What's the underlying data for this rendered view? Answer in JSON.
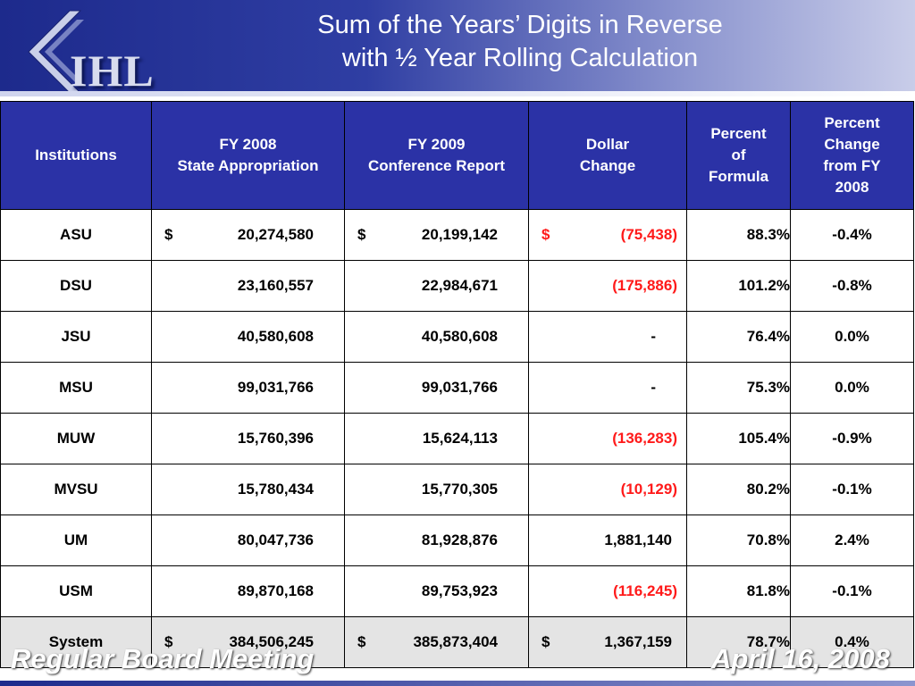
{
  "header": {
    "logo_text": "IHL",
    "title_line1": "Sum of the Years’ Digits in Reverse",
    "title_line2": "with ½ Year Rolling Calculation"
  },
  "table": {
    "headers": {
      "institutions": "Institutions",
      "fy2008_line1": "FY 2008",
      "fy2008_line2": "State Appropriation",
      "fy2009_line1": "FY 2009",
      "fy2009_line2": "Conference Report",
      "dollar_line1": "Dollar",
      "dollar_line2": "Change",
      "pct_formula_line1": "Percent",
      "pct_formula_line2": "of",
      "pct_formula_line3": "Formula",
      "pct_change_line1": "Percent",
      "pct_change_line2": "Change",
      "pct_change_line3": "from FY",
      "pct_change_line4": "2008"
    },
    "rows": [
      {
        "inst": "ASU",
        "fy08_cur": "$",
        "fy08": "20,274,580",
        "fy09_cur": "$",
        "fy09": "20,199,142",
        "chg_cur": "$",
        "chg": "(75,438)",
        "pct": "88.3%",
        "pchg": "-0.4%"
      },
      {
        "inst": "DSU",
        "fy08_cur": "",
        "fy08": "23,160,557",
        "fy09_cur": "",
        "fy09": "22,984,671",
        "chg_cur": "",
        "chg": "(175,886)",
        "pct": "101.2%",
        "pchg": "-0.8%"
      },
      {
        "inst": "JSU",
        "fy08_cur": "",
        "fy08": "40,580,608",
        "fy09_cur": "",
        "fy09": "40,580,608",
        "chg_cur": "",
        "chg": "-",
        "pct": "76.4%",
        "pchg": "0.0%"
      },
      {
        "inst": "MSU",
        "fy08_cur": "",
        "fy08": "99,031,766",
        "fy09_cur": "",
        "fy09": "99,031,766",
        "chg_cur": "",
        "chg": "-",
        "pct": "75.3%",
        "pchg": "0.0%"
      },
      {
        "inst": "MUW",
        "fy08_cur": "",
        "fy08": "15,760,396",
        "fy09_cur": "",
        "fy09": "15,624,113",
        "chg_cur": "",
        "chg": "(136,283)",
        "pct": "105.4%",
        "pchg": "-0.9%"
      },
      {
        "inst": "MVSU",
        "fy08_cur": "",
        "fy08": "15,780,434",
        "fy09_cur": "",
        "fy09": "15,770,305",
        "chg_cur": "",
        "chg": "(10,129)",
        "pct": "80.2%",
        "pchg": "-0.1%"
      },
      {
        "inst": "UM",
        "fy08_cur": "",
        "fy08": "80,047,736",
        "fy09_cur": "",
        "fy09": "81,928,876",
        "chg_cur": "",
        "chg": "1,881,140",
        "pct": "70.8%",
        "pchg": "2.4%"
      },
      {
        "inst": "USM",
        "fy08_cur": "",
        "fy08": "89,870,168",
        "fy09_cur": "",
        "fy09": "89,753,923",
        "chg_cur": "",
        "chg": "(116,245)",
        "pct": "81.8%",
        "pchg": "-0.1%"
      },
      {
        "inst": "System",
        "fy08_cur": "$",
        "fy08": "384,506,245",
        "fy09_cur": "$",
        "fy09": "385,873,404",
        "chg_cur": "$",
        "chg": "1,367,159",
        "pct": "78.7%",
        "pchg": "0.4%"
      }
    ]
  },
  "footer": {
    "left": "Regular Board Meeting",
    "right": "April 16, 2008"
  },
  "colors": {
    "header_blue": "#2b32a6",
    "negative_red": "#ff1a1a",
    "total_row_gray": "#e4e4e4"
  }
}
